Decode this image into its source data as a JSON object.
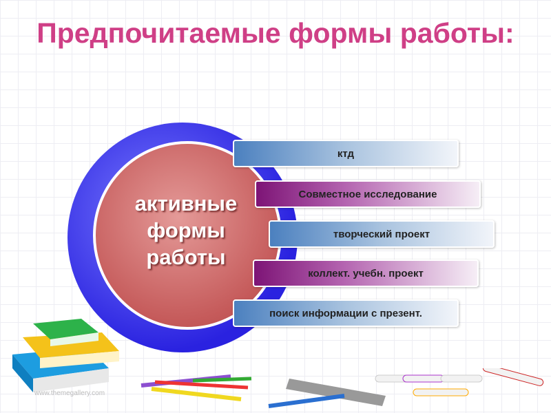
{
  "slide": {
    "title": "Предпочитаемые формы работы:",
    "center_label": "активные формы работы",
    "items": [
      {
        "label": "ктд",
        "color": "#4b80bf"
      },
      {
        "label": "Совместное исследование",
        "color": "#7d1476"
      },
      {
        "label": "творческий проект",
        "color": "#4b80bf"
      },
      {
        "label": "коллект.  учебн. проект",
        "color": "#7d1476"
      },
      {
        "label": "поиск информации с презент.",
        "color": "#4b80bf"
      }
    ],
    "watermark": "www.themegallery.com",
    "title_color": "#cf3f86"
  }
}
